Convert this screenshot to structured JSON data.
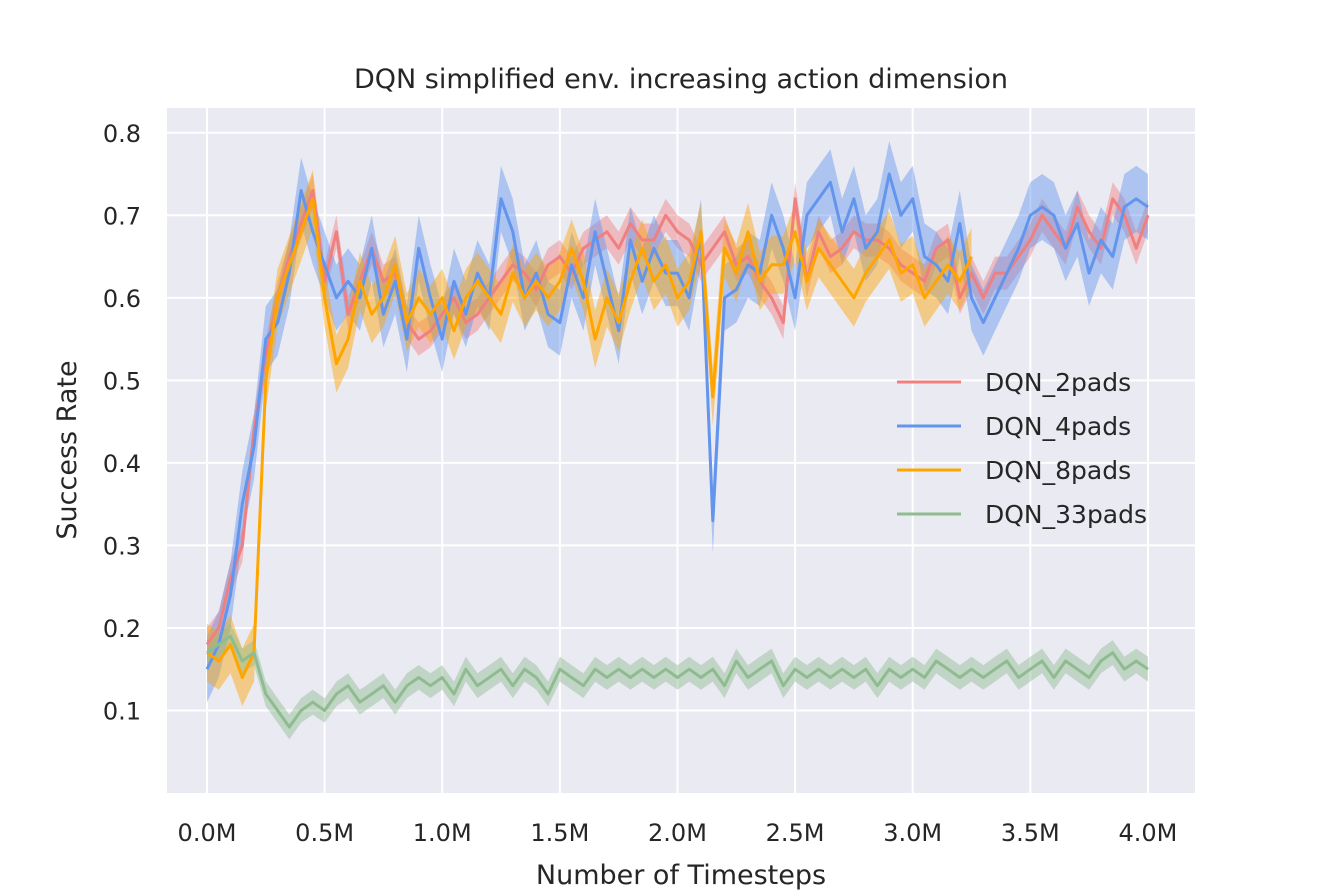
{
  "chart_data": {
    "type": "line",
    "title": "DQN simplified env. increasing action dimension",
    "xlabel": "Number of Timesteps",
    "ylabel": "Success Rate",
    "xlim": [
      -0.17,
      4.2
    ],
    "ylim": [
      0.0,
      0.83
    ],
    "xticks": [
      0.0,
      0.5,
      1.0,
      1.5,
      2.0,
      2.5,
      3.0,
      3.5,
      4.0
    ],
    "xtick_labels": [
      "0.0M",
      "0.5M",
      "1.0M",
      "1.5M",
      "2.0M",
      "2.5M",
      "3.0M",
      "3.5M",
      "4.0M"
    ],
    "yticks": [
      0.1,
      0.2,
      0.3,
      0.4,
      0.5,
      0.6,
      0.7,
      0.8
    ],
    "ytick_labels": [
      "0.1",
      "0.2",
      "0.3",
      "0.4",
      "0.5",
      "0.6",
      "0.7",
      "0.8"
    ],
    "grid": true,
    "legend_position": "center-right",
    "background": "#eaeaf2",
    "series": [
      {
        "name": "DQN_2pads",
        "color": "#f08080",
        "x": [
          0.0,
          0.05,
          0.1,
          0.15,
          0.2,
          0.25,
          0.3,
          0.35,
          0.4,
          0.45,
          0.5,
          0.55,
          0.6,
          0.65,
          0.7,
          0.75,
          0.8,
          0.85,
          0.9,
          0.95,
          1.0,
          1.05,
          1.1,
          1.15,
          1.2,
          1.25,
          1.3,
          1.35,
          1.4,
          1.45,
          1.5,
          1.55,
          1.6,
          1.65,
          1.7,
          1.75,
          1.8,
          1.85,
          1.9,
          1.95,
          2.0,
          2.05,
          2.1,
          2.15,
          2.2,
          2.25,
          2.3,
          2.35,
          2.4,
          2.45,
          2.5,
          2.55,
          2.6,
          2.65,
          2.7,
          2.75,
          2.8,
          2.85,
          2.9,
          2.95,
          3.0,
          3.05,
          3.1,
          3.15,
          3.2,
          3.25,
          3.3,
          3.35,
          3.4,
          3.45,
          3.5,
          3.55,
          3.6,
          3.65,
          3.7,
          3.75,
          3.8,
          3.85,
          3.9,
          3.95,
          4.0
        ],
        "y": [
          0.18,
          0.2,
          0.26,
          0.3,
          0.44,
          0.53,
          0.6,
          0.65,
          0.69,
          0.73,
          0.62,
          0.68,
          0.58,
          0.62,
          0.66,
          0.62,
          0.63,
          0.57,
          0.55,
          0.56,
          0.58,
          0.6,
          0.57,
          0.58,
          0.6,
          0.62,
          0.64,
          0.63,
          0.61,
          0.64,
          0.65,
          0.63,
          0.66,
          0.67,
          0.68,
          0.66,
          0.69,
          0.67,
          0.67,
          0.7,
          0.68,
          0.67,
          0.64,
          0.66,
          0.68,
          0.64,
          0.65,
          0.62,
          0.6,
          0.57,
          0.72,
          0.62,
          0.68,
          0.65,
          0.66,
          0.68,
          0.67,
          0.67,
          0.66,
          0.64,
          0.63,
          0.62,
          0.66,
          0.67,
          0.6,
          0.63,
          0.6,
          0.63,
          0.63,
          0.65,
          0.67,
          0.7,
          0.68,
          0.66,
          0.71,
          0.68,
          0.66,
          0.72,
          0.7,
          0.66,
          0.7
        ],
        "band": 0.02
      },
      {
        "name": "DQN_4pads",
        "color": "#6495ed",
        "x": [
          0.0,
          0.05,
          0.1,
          0.15,
          0.2,
          0.25,
          0.3,
          0.35,
          0.4,
          0.45,
          0.5,
          0.55,
          0.6,
          0.65,
          0.7,
          0.75,
          0.8,
          0.85,
          0.9,
          0.95,
          1.0,
          1.05,
          1.1,
          1.15,
          1.2,
          1.25,
          1.3,
          1.35,
          1.4,
          1.45,
          1.5,
          1.55,
          1.6,
          1.65,
          1.7,
          1.75,
          1.8,
          1.85,
          1.9,
          1.95,
          2.0,
          2.05,
          2.1,
          2.15,
          2.2,
          2.25,
          2.3,
          2.35,
          2.4,
          2.45,
          2.5,
          2.55,
          2.6,
          2.65,
          2.7,
          2.75,
          2.8,
          2.85,
          2.9,
          2.95,
          3.0,
          3.05,
          3.1,
          3.15,
          3.2,
          3.25,
          3.3,
          3.35,
          3.4,
          3.45,
          3.5,
          3.55,
          3.6,
          3.65,
          3.7,
          3.75,
          3.8,
          3.85,
          3.9,
          3.95,
          4.0
        ],
        "y": [
          0.15,
          0.18,
          0.24,
          0.35,
          0.42,
          0.55,
          0.57,
          0.63,
          0.73,
          0.68,
          0.64,
          0.6,
          0.62,
          0.6,
          0.66,
          0.58,
          0.62,
          0.55,
          0.66,
          0.6,
          0.55,
          0.62,
          0.58,
          0.63,
          0.6,
          0.72,
          0.68,
          0.6,
          0.63,
          0.58,
          0.57,
          0.64,
          0.6,
          0.68,
          0.62,
          0.56,
          0.67,
          0.62,
          0.66,
          0.63,
          0.63,
          0.6,
          0.68,
          0.33,
          0.6,
          0.61,
          0.64,
          0.63,
          0.7,
          0.66,
          0.6,
          0.7,
          0.72,
          0.74,
          0.68,
          0.72,
          0.66,
          0.68,
          0.75,
          0.7,
          0.72,
          0.65,
          0.64,
          0.62,
          0.69,
          0.6,
          0.57,
          0.6,
          0.63,
          0.66,
          0.7,
          0.71,
          0.7,
          0.66,
          0.69,
          0.63,
          0.67,
          0.65,
          0.71,
          0.72,
          0.71
        ],
        "band": 0.04
      },
      {
        "name": "DQN_8pads",
        "color": "#ffa500",
        "x": [
          0.0,
          0.05,
          0.1,
          0.15,
          0.2,
          0.25,
          0.3,
          0.35,
          0.4,
          0.45,
          0.5,
          0.55,
          0.6,
          0.65,
          0.7,
          0.75,
          0.8,
          0.85,
          0.9,
          0.95,
          1.0,
          1.05,
          1.1,
          1.15,
          1.2,
          1.25,
          1.3,
          1.35,
          1.4,
          1.45,
          1.5,
          1.55,
          1.6,
          1.65,
          1.7,
          1.75,
          1.8,
          1.85,
          1.9,
          1.95,
          2.0,
          2.05,
          2.1,
          2.15,
          2.2,
          2.25,
          2.3,
          2.35,
          2.4,
          2.45,
          2.5,
          2.55,
          2.6,
          2.65,
          2.7,
          2.75,
          2.8,
          2.85,
          2.9,
          2.95,
          3.0,
          3.05,
          3.1,
          3.15,
          3.2,
          3.25
        ],
        "y": [
          0.17,
          0.16,
          0.18,
          0.14,
          0.17,
          0.5,
          0.6,
          0.64,
          0.68,
          0.72,
          0.6,
          0.52,
          0.55,
          0.62,
          0.58,
          0.6,
          0.64,
          0.57,
          0.6,
          0.58,
          0.6,
          0.56,
          0.6,
          0.62,
          0.6,
          0.58,
          0.63,
          0.6,
          0.62,
          0.6,
          0.62,
          0.66,
          0.62,
          0.55,
          0.6,
          0.57,
          0.62,
          0.66,
          0.62,
          0.64,
          0.6,
          0.62,
          0.68,
          0.48,
          0.66,
          0.63,
          0.68,
          0.62,
          0.64,
          0.64,
          0.68,
          0.62,
          0.66,
          0.64,
          0.62,
          0.6,
          0.63,
          0.65,
          0.67,
          0.63,
          0.64,
          0.6,
          0.62,
          0.64,
          0.62,
          0.65
        ],
        "band": 0.035
      },
      {
        "name": "DQN_33pads",
        "color": "#8fbc8f",
        "x": [
          0.0,
          0.05,
          0.1,
          0.15,
          0.2,
          0.25,
          0.3,
          0.35,
          0.4,
          0.45,
          0.5,
          0.55,
          0.6,
          0.65,
          0.7,
          0.75,
          0.8,
          0.85,
          0.9,
          0.95,
          1.0,
          1.05,
          1.1,
          1.15,
          1.2,
          1.25,
          1.3,
          1.35,
          1.4,
          1.45,
          1.5,
          1.55,
          1.6,
          1.65,
          1.7,
          1.75,
          1.8,
          1.85,
          1.9,
          1.95,
          2.0,
          2.05,
          2.1,
          2.15,
          2.2,
          2.25,
          2.3,
          2.35,
          2.4,
          2.45,
          2.5,
          2.55,
          2.6,
          2.65,
          2.7,
          2.75,
          2.8,
          2.85,
          2.9,
          2.95,
          3.0,
          3.05,
          3.1,
          3.15,
          3.2,
          3.25,
          3.3,
          3.35,
          3.4,
          3.45,
          3.5,
          3.55,
          3.6,
          3.65,
          3.7,
          3.75,
          3.8,
          3.85,
          3.9,
          3.95,
          4.0
        ],
        "y": [
          0.17,
          0.18,
          0.19,
          0.16,
          0.17,
          0.12,
          0.1,
          0.08,
          0.1,
          0.11,
          0.1,
          0.12,
          0.13,
          0.11,
          0.12,
          0.13,
          0.11,
          0.13,
          0.14,
          0.13,
          0.14,
          0.12,
          0.15,
          0.13,
          0.14,
          0.15,
          0.13,
          0.15,
          0.14,
          0.12,
          0.15,
          0.14,
          0.13,
          0.15,
          0.14,
          0.15,
          0.14,
          0.15,
          0.14,
          0.15,
          0.14,
          0.15,
          0.14,
          0.15,
          0.13,
          0.16,
          0.14,
          0.15,
          0.16,
          0.13,
          0.15,
          0.14,
          0.15,
          0.14,
          0.15,
          0.14,
          0.15,
          0.13,
          0.15,
          0.14,
          0.15,
          0.14,
          0.16,
          0.15,
          0.14,
          0.15,
          0.14,
          0.15,
          0.16,
          0.14,
          0.15,
          0.16,
          0.14,
          0.16,
          0.15,
          0.14,
          0.16,
          0.17,
          0.15,
          0.16,
          0.15
        ],
        "band": 0.015
      }
    ]
  }
}
